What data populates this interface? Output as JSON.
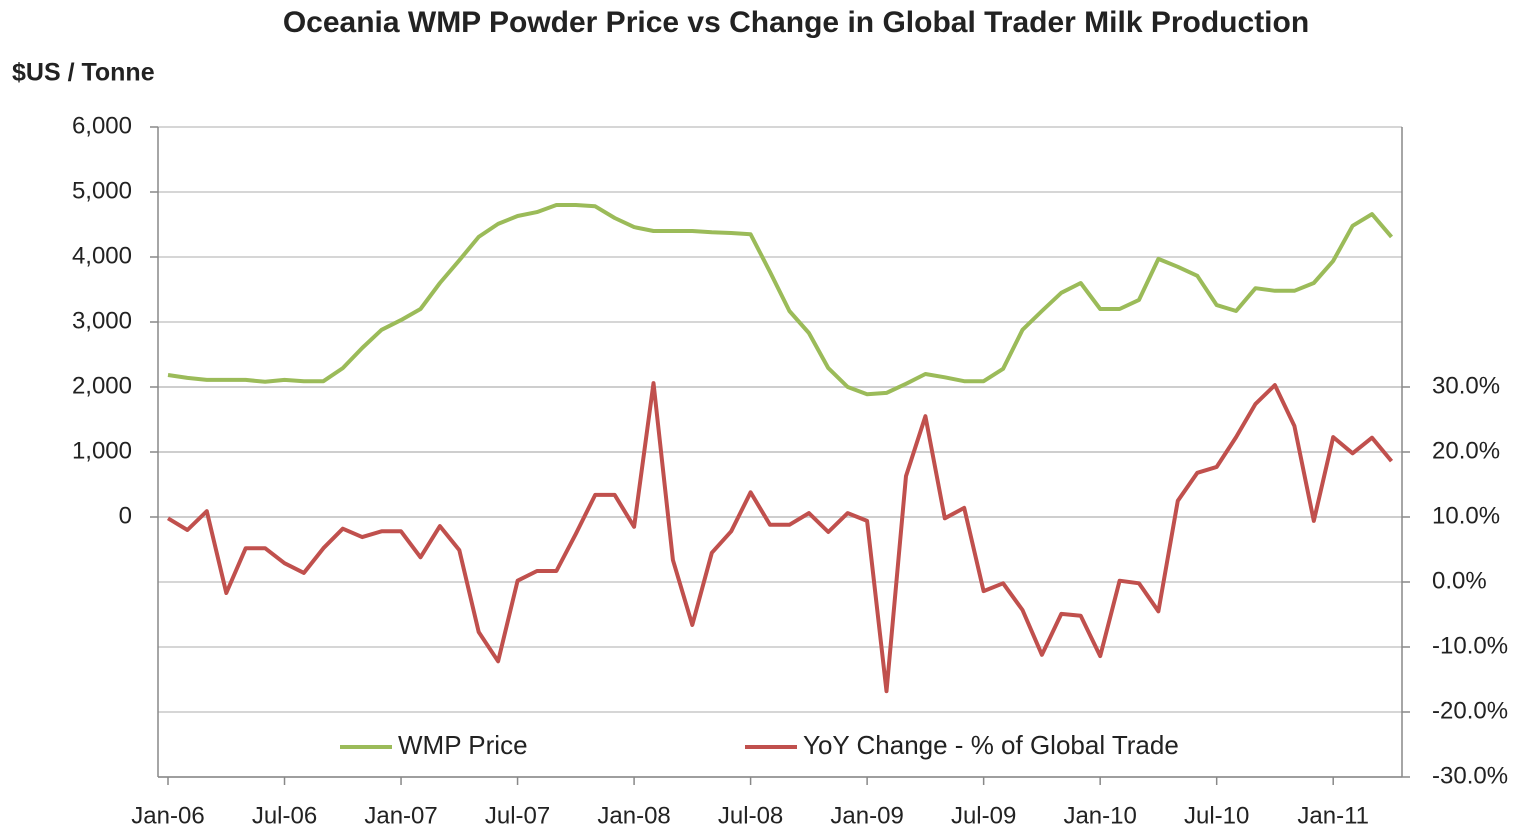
{
  "chart_data": {
    "type": "line",
    "title": "Oceania WMP Powder Price vs Change in Global Trader Milk Production",
    "y_label": "$US / Tonne",
    "categories": [
      "Jan-06",
      null,
      null,
      null,
      null,
      null,
      "Jul-06",
      null,
      null,
      null,
      null,
      null,
      "Jan-07",
      null,
      null,
      null,
      null,
      null,
      "Jul-07",
      null,
      null,
      null,
      null,
      null,
      "Jan-08",
      null,
      null,
      null,
      null,
      null,
      "Jul-08",
      null,
      null,
      null,
      null,
      null,
      "Jan-09",
      null,
      null,
      null,
      null,
      null,
      "Jul-09",
      null,
      null,
      null,
      null,
      null,
      "Jan-10",
      null,
      null,
      null,
      null,
      null,
      "Jul-10",
      null,
      null,
      null,
      null,
      null,
      "Jan-11",
      null,
      null,
      null
    ],
    "series": [
      {
        "name": "WMP Price",
        "color": "#9bbb59",
        "values": [
          2185,
          2140,
          2110,
          2110,
          2110,
          2080,
          2110,
          2090,
          2090,
          2290,
          2600,
          2880,
          3030,
          3200,
          3600,
          3950,
          4310,
          4510,
          4630,
          4690,
          4800,
          4800,
          4780,
          4600,
          4460,
          4400,
          4400,
          4400,
          4380,
          4370,
          4350,
          3770,
          3170,
          2830,
          2290,
          2000,
          1890,
          1910,
          2050,
          2200,
          2150,
          2090,
          2090,
          2280,
          2880,
          3170,
          3450,
          3600,
          3200,
          3200,
          3340,
          3970,
          3850,
          3710,
          3260,
          3170,
          3520,
          3480,
          3480,
          3600,
          3940,
          4480,
          4660,
          4310
        ]
      },
      {
        "name": "YoY Change - % of Global Trade",
        "color": "#c0504d",
        "axis": "y2",
        "values": [
          9.8,
          8,
          10.9,
          -1.7,
          5.2,
          5.2,
          2.9,
          1.4,
          5.2,
          8.2,
          6.9,
          7.8,
          7.8,
          3.8,
          8.6,
          4.9,
          -7.7,
          -12.2,
          0.2,
          1.7,
          1.7,
          7.4,
          13.4,
          13.4,
          8.5,
          30.6,
          3.4,
          -6.6,
          4.5,
          7.8,
          13.8,
          8.8,
          8.8,
          10.6,
          7.7,
          10.6,
          9.4,
          -16.8,
          16.3,
          25.5,
          9.8,
          11.4,
          -1.4,
          -0.2,
          -4.3,
          -11.2,
          -4.9,
          -5.2,
          -11.4,
          0.2,
          -0.2,
          -4.5,
          12.5,
          16.8,
          17.7,
          22.3,
          27.4,
          30.3,
          24,
          9.4,
          22.3,
          19.8,
          22.2,
          18.6
        ]
      }
    ],
    "ylim": [
      -4000,
      6000
    ],
    "yticks": [
      0,
      {
        "value": 1000,
        "label": "1,000"
      },
      {
        "value": 2000,
        "label": "2,000"
      },
      {
        "value": 3000,
        "label": "3,000"
      },
      {
        "value": 4000,
        "label": "4,000"
      },
      {
        "value": 5000,
        "label": "5,000"
      },
      {
        "value": 6000,
        "label": "6,000"
      }
    ],
    "y2lim": [
      -30,
      70
    ],
    "y2ticks": [
      {
        "value": -30,
        "label": "-30.0%"
      },
      {
        "value": -20,
        "label": "-20.0%"
      },
      {
        "value": -10,
        "label": "-10.0%"
      },
      {
        "value": 0,
        "label": "0.0%"
      },
      {
        "value": 10,
        "label": "10.0%"
      },
      {
        "value": 20,
        "label": "20.0%"
      },
      {
        "value": 30,
        "label": "30.0%"
      }
    ],
    "grid": true,
    "legend": "bottom"
  }
}
